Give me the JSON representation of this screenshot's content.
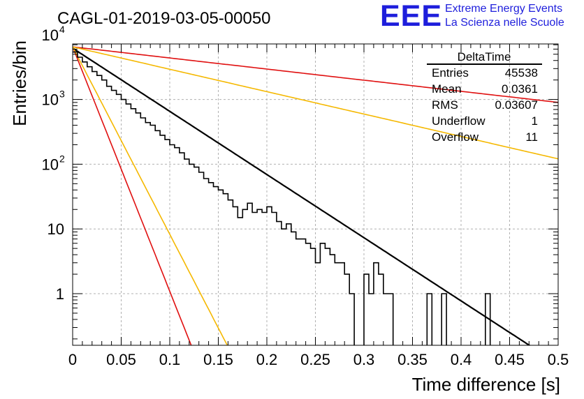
{
  "header": {
    "run_title": "CAGL-01-2019-03-05-00050",
    "logo_letters": "EEE",
    "logo_line1": "Extreme Energy Events",
    "logo_line2": "La Scienza nelle Scuole",
    "logo_color": "#1e1edc"
  },
  "stats_box": {
    "title": "DeltaTime",
    "rows": [
      {
        "label": "Entries",
        "value": "45538"
      },
      {
        "label": "Mean",
        "value": "0.0361"
      },
      {
        "label": "RMS",
        "value": "0.03607"
      },
      {
        "label": "Underflow",
        "value": "1"
      },
      {
        "label": "Overflow",
        "value": "11"
      }
    ]
  },
  "chart_data": {
    "type": "histogram",
    "title": "CAGL-01-2019-03-05-00050",
    "xlabel": "Time difference [s]",
    "ylabel": "Entries/bin",
    "xlim": [
      0,
      0.5
    ],
    "ylim": [
      0.15,
      10000
    ],
    "yscale": "log",
    "grid": true,
    "x_ticks": [
      {
        "v": 0,
        "label": "0"
      },
      {
        "v": 0.05,
        "label": "0.05"
      },
      {
        "v": 0.1,
        "label": "0.1"
      },
      {
        "v": 0.15,
        "label": "0.15"
      },
      {
        "v": 0.2,
        "label": "0.2"
      },
      {
        "v": 0.25,
        "label": "0.25"
      },
      {
        "v": 0.3,
        "label": "0.3"
      },
      {
        "v": 0.35,
        "label": "0.35"
      },
      {
        "v": 0.4,
        "label": "0.4"
      },
      {
        "v": 0.45,
        "label": "0.45"
      },
      {
        "v": 0.5,
        "label": "0.5"
      }
    ],
    "y_ticks": [
      {
        "v": 1,
        "label": "1"
      },
      {
        "v": 10,
        "label": "10"
      },
      {
        "v": 100,
        "label": "10",
        "exp": "2"
      },
      {
        "v": 1000,
        "label": "10",
        "exp": "3"
      },
      {
        "v": 10000,
        "label": "10",
        "exp": "4"
      }
    ],
    "bin_width": 0.005,
    "counts": [
      5400,
      4500,
      3800,
      3200,
      2700,
      2350,
      2000,
      1600,
      1380,
      1200,
      1000,
      850,
      720,
      620,
      520,
      440,
      400,
      330,
      280,
      240,
      200,
      180,
      150,
      120,
      100,
      90,
      75,
      60,
      52,
      45,
      40,
      35,
      28,
      22,
      15,
      20,
      25,
      18,
      20,
      18,
      22,
      18,
      13,
      10,
      12,
      9,
      7,
      7,
      6,
      5,
      3,
      6,
      5,
      4,
      3,
      3,
      2,
      1,
      0,
      0,
      2,
      1,
      3,
      2,
      1,
      1,
      0,
      0,
      0,
      0,
      0,
      0,
      0,
      1,
      0,
      0,
      1,
      0,
      0,
      0,
      0,
      0,
      0,
      0,
      0,
      1,
      0,
      0,
      0,
      0,
      0,
      0,
      0,
      0,
      0,
      0,
      0,
      0,
      0,
      0
    ],
    "fits": [
      {
        "color": "#000000",
        "A": 6200,
        "tau": 0.0445
      },
      {
        "color": "#e01010",
        "A": 6500,
        "tau": 0.0115
      },
      {
        "color": "#f5b800",
        "A": 6500,
        "tau": 0.015
      },
      {
        "color": "#e01010",
        "A": 6500,
        "tau": 0.253
      },
      {
        "color": "#f5b800",
        "A": 6500,
        "tau": 0.1255
      }
    ],
    "colors": {
      "histogram": "#000000",
      "grid": "#b0b0b0"
    }
  }
}
